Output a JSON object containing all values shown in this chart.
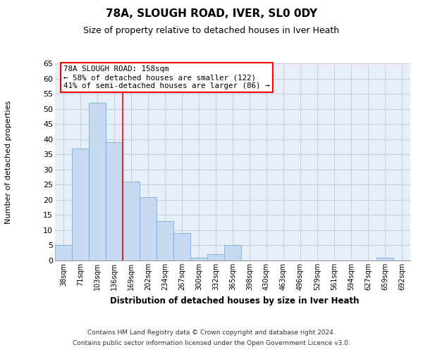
{
  "title1": "78A, SLOUGH ROAD, IVER, SL0 0DY",
  "title2": "Size of property relative to detached houses in Iver Heath",
  "xlabel": "Distribution of detached houses by size in Iver Heath",
  "ylabel": "Number of detached properties",
  "bar_labels": [
    "38sqm",
    "71sqm",
    "103sqm",
    "136sqm",
    "169sqm",
    "202sqm",
    "234sqm",
    "267sqm",
    "300sqm",
    "332sqm",
    "365sqm",
    "398sqm",
    "430sqm",
    "463sqm",
    "496sqm",
    "529sqm",
    "561sqm",
    "594sqm",
    "627sqm",
    "659sqm",
    "692sqm"
  ],
  "bar_values": [
    5,
    37,
    52,
    39,
    26,
    21,
    13,
    9,
    1,
    2,
    5,
    0,
    0,
    0,
    0,
    0,
    0,
    0,
    0,
    1,
    0
  ],
  "bar_color": "#c6d9f0",
  "bar_edge_color": "#7bafd4",
  "red_line_x": 4.0,
  "annotation_line1": "78A SLOUGH ROAD: 158sqm",
  "annotation_line2": "← 58% of detached houses are smaller (122)",
  "annotation_line3": "41% of semi-detached houses are larger (86) →",
  "ylim_max": 65,
  "yticks": [
    0,
    5,
    10,
    15,
    20,
    25,
    30,
    35,
    40,
    45,
    50,
    55,
    60,
    65
  ],
  "footer1": "Contains HM Land Registry data © Crown copyright and database right 2024.",
  "footer2": "Contains public sector information licensed under the Open Government Licence v3.0.",
  "plot_bg": "#e8eef8",
  "grid_color": "#c5cfe0"
}
